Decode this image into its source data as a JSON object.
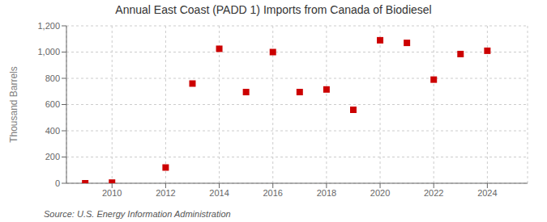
{
  "chart_data": {
    "type": "scatter",
    "title": "Annual East Coast (PADD 1) Imports from Canada of Biodiesel",
    "ylabel": "Thousand Barrels",
    "source": "Source: U.S. Energy Information Administration",
    "x": [
      2009,
      2010,
      2012,
      2013,
      2014,
      2015,
      2016,
      2017,
      2018,
      2019,
      2020,
      2021,
      2022,
      2023,
      2024
    ],
    "values": [
      0,
      5,
      120,
      760,
      1025,
      695,
      1000,
      695,
      715,
      560,
      1090,
      1070,
      790,
      985,
      1010
    ],
    "color": "#cc0000",
    "marker": "square",
    "xlim": [
      2008.3,
      2025.5
    ],
    "xticks": [
      2010,
      2012,
      2014,
      2016,
      2018,
      2020,
      2022,
      2024
    ],
    "ylim": [
      0,
      1200
    ],
    "yticks": [
      0,
      200,
      400,
      600,
      800,
      {
        "value": 1000,
        "label": "1,000"
      },
      {
        "value": 1200,
        "label": "1,200"
      }
    ],
    "grid": true
  }
}
